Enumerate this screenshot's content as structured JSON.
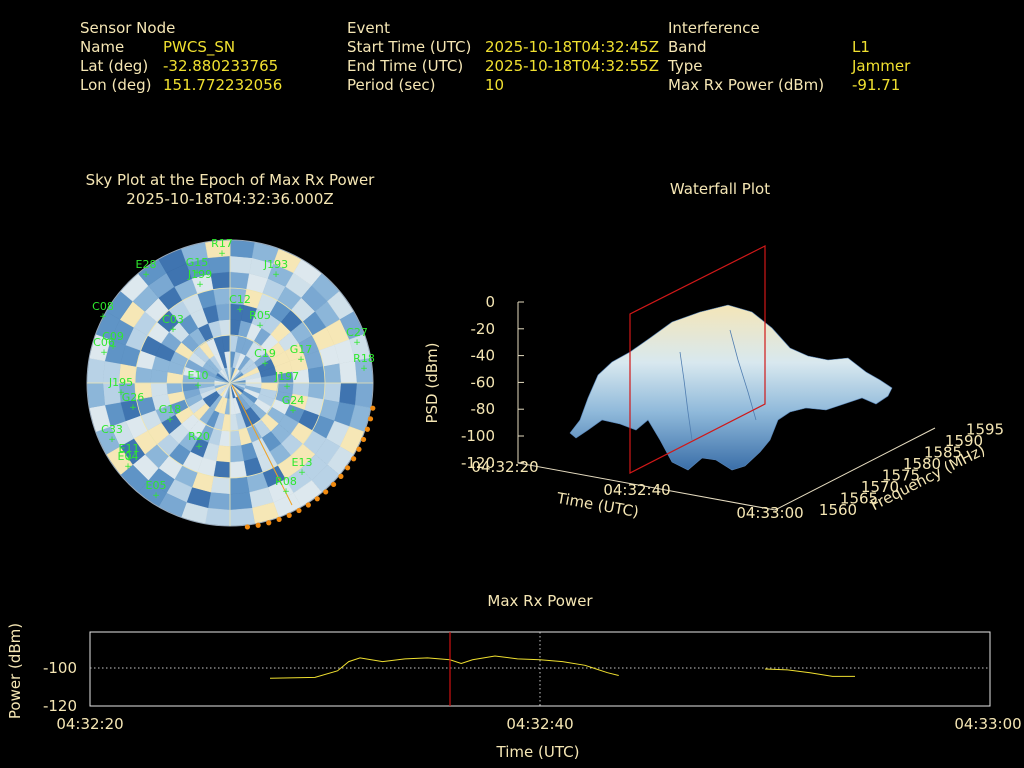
{
  "header": {
    "sensor": {
      "title": "Sensor Node",
      "rows": [
        {
          "label": "Name",
          "value": "PWCS_SN"
        },
        {
          "label": "Lat (deg)",
          "value": "-32.880233765"
        },
        {
          "label": "Lon (deg)",
          "value": "151.772232056"
        }
      ]
    },
    "event": {
      "title": "Event",
      "rows": [
        {
          "label": "Start Time (UTC)",
          "value": "2025-10-18T04:32:45Z"
        },
        {
          "label": "End Time (UTC)",
          "value": "2025-10-18T04:32:55Z"
        },
        {
          "label": "Period (sec)",
          "value": "10"
        }
      ]
    },
    "interference": {
      "title": "Interference",
      "rows": [
        {
          "label": "Band",
          "value": "L1"
        },
        {
          "label": "Type",
          "value": "Jammer"
        },
        {
          "label": "Max Rx Power (dBm)",
          "value": "-91.71"
        }
      ]
    }
  },
  "sky_plot": {
    "title": "Sky Plot at the Epoch of Max Rx Power",
    "subtitle": "2025-10-18T04:32:36.000Z",
    "satellites": [
      "R17",
      "E28",
      "G15",
      "J199",
      "J193",
      "C08",
      "C27",
      "R18",
      "C06",
      "C09",
      "J195",
      "G17",
      "G26",
      "E10",
      "R20",
      "C33",
      "E11",
      "E05",
      "R08",
      "G24",
      "J197",
      "C19",
      "C12",
      "R05",
      "G18",
      "C03",
      "E13",
      "E04"
    ]
  },
  "waterfall": {
    "title": "Waterfall Plot",
    "zlabel": "PSD (dBm)",
    "xlabel": "Time (UTC)",
    "ylabel": "Frequency (MHz)",
    "zticks": [
      "0",
      "-20",
      "-40",
      "-60",
      "-80",
      "-100",
      "-120"
    ],
    "xticks": [
      "04:32:20",
      "04:32:40",
      "04:33:00"
    ],
    "yticks": [
      "1560",
      "1565",
      "1570",
      "1575",
      "1580",
      "1585",
      "1590",
      "1595"
    ]
  },
  "chart_data": {
    "type": "line",
    "title": "Max Rx Power",
    "xlabel": "Time (UTC)",
    "ylabel": "Power (dBm)",
    "xticks": [
      "04:32:20",
      "04:32:40",
      "04:33:00"
    ],
    "yticks": [
      "-100",
      "-120"
    ],
    "xlim": [
      0,
      40
    ],
    "ylim": [
      -120,
      -80
    ],
    "marker_time": "04:32:36",
    "series": [
      {
        "segments": [
          [
            [
              8,
              -105
            ],
            [
              10,
              -104.5
            ],
            [
              11,
              -101
            ],
            [
              11.5,
              -96
            ],
            [
              12,
              -94
            ],
            [
              12.5,
              -95
            ],
            [
              13,
              -96
            ],
            [
              14,
              -94.5
            ],
            [
              15,
              -94
            ],
            [
              16,
              -95
            ],
            [
              16.5,
              -97
            ],
            [
              17,
              -95
            ],
            [
              18,
              -93
            ],
            [
              19,
              -94.5
            ],
            [
              20,
              -95
            ],
            [
              21,
              -96
            ],
            [
              22,
              -98
            ],
            [
              22.5,
              -100
            ],
            [
              23,
              -102
            ],
            [
              23.5,
              -103.5
            ]
          ],
          [
            [
              30,
              -100
            ],
            [
              31,
              -100.5
            ],
            [
              32,
              -102
            ],
            [
              33,
              -104
            ],
            [
              34,
              -104
            ]
          ]
        ]
      }
    ],
    "colors": {
      "line": "#f0e030",
      "marker": "#d01010"
    }
  }
}
